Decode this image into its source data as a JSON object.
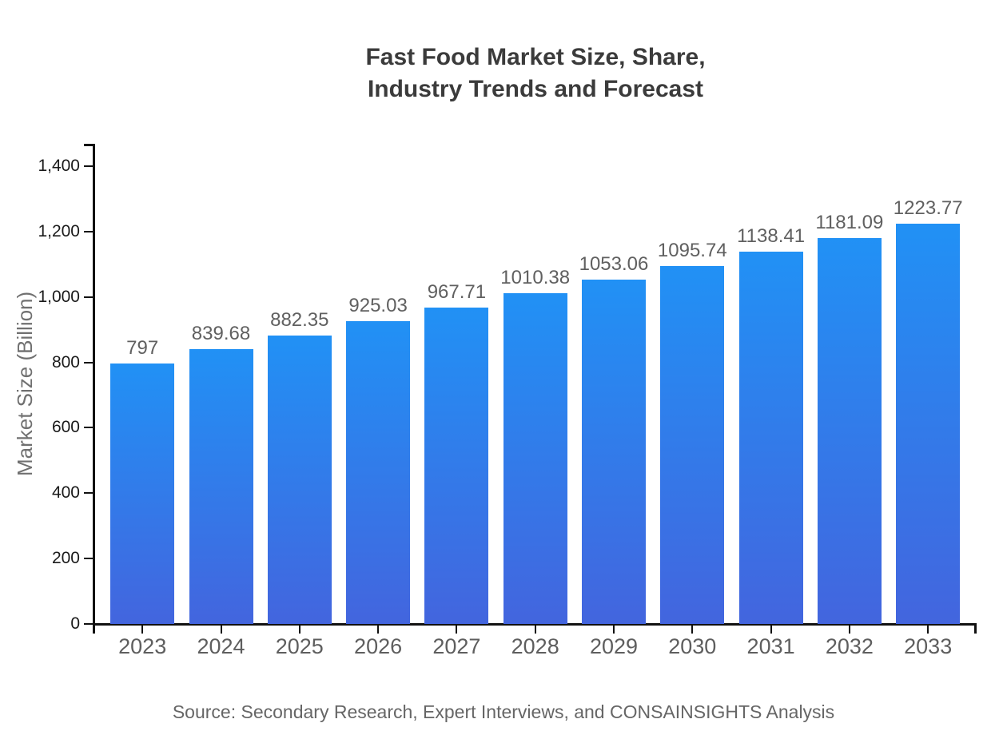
{
  "title": {
    "line1": "Fast Food Market Size, Share,",
    "line2": "Industry Trends and Forecast"
  },
  "source_note": "Source: Secondary Research, Expert Interviews, and CONSAINSIGHTS Analysis",
  "chart_data": {
    "type": "bar",
    "title": "Fast Food Market Size, Share, Industry Trends and Forecast",
    "categories": [
      "2023",
      "2024",
      "2025",
      "2026",
      "2027",
      "2028",
      "2029",
      "2030",
      "2031",
      "2032",
      "2033"
    ],
    "values": [
      797,
      839.68,
      882.35,
      925.03,
      967.71,
      1010.38,
      1053.06,
      1095.74,
      1138.41,
      1181.09,
      1223.77
    ],
    "value_labels": [
      "797",
      "839.68",
      "882.35",
      "925.03",
      "967.71",
      "1010.38",
      "1053.06",
      "1095.74",
      "1138.41",
      "1181.09",
      "1223.77"
    ],
    "xlabel": "",
    "ylabel": "Market Size (Billion)",
    "ylim": [
      0,
      1400
    ],
    "yticks": [
      0,
      200,
      400,
      600,
      800,
      1000,
      1200,
      1400
    ],
    "ytick_labels": [
      "0",
      "200",
      "400",
      "600",
      "800",
      "1,000",
      "1,200",
      "1,400"
    ],
    "grid": false,
    "legend": false,
    "bar_color_top": "#2191f5",
    "bar_color_bottom": "#4365de",
    "axis_color": "#111111",
    "label_color": "#606060"
  }
}
